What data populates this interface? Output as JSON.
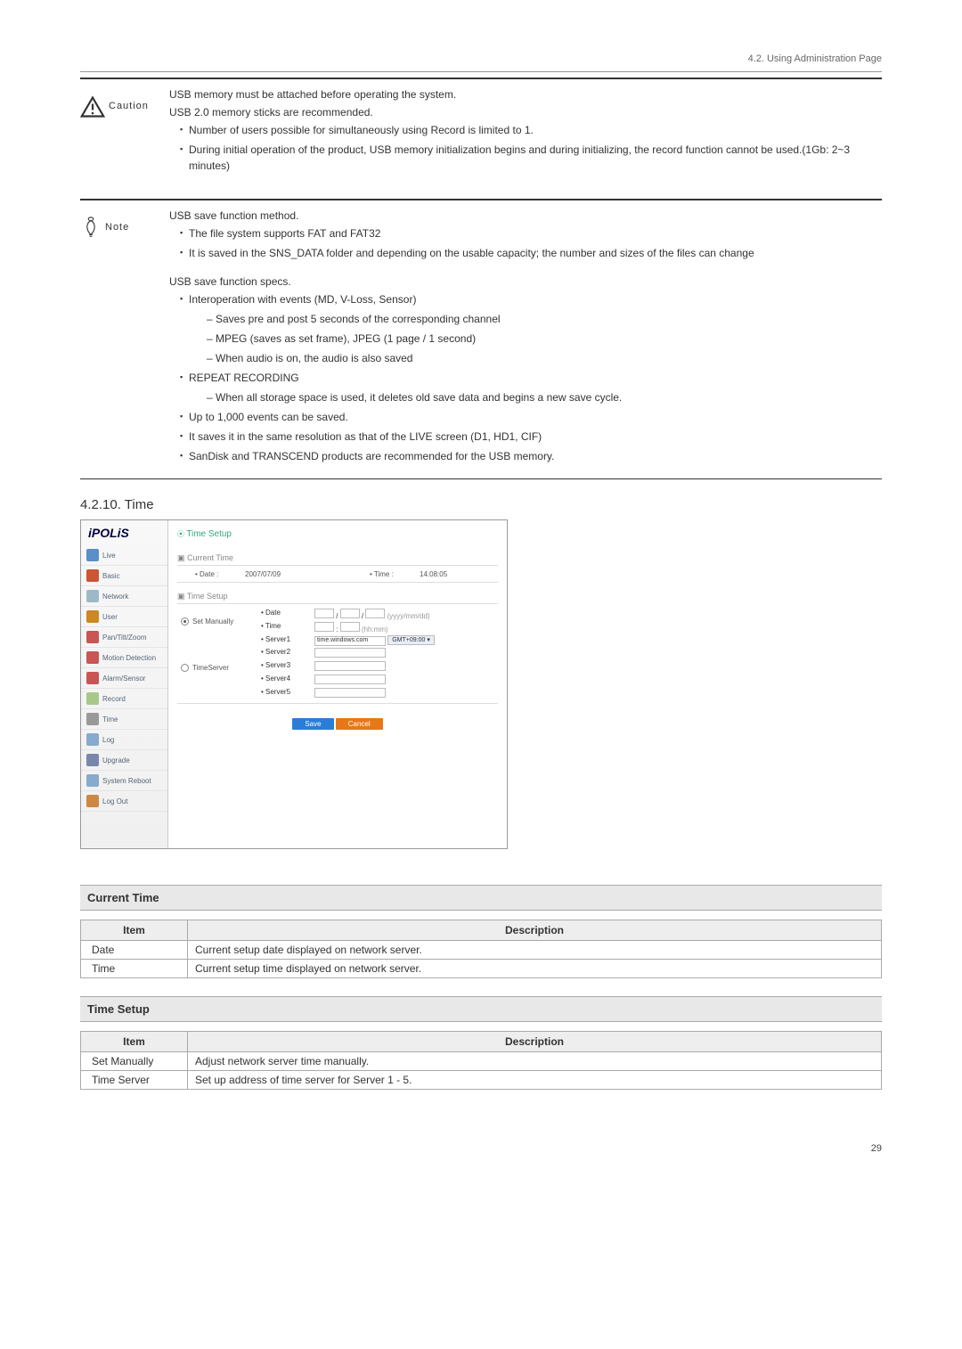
{
  "breadcrumb": "4.2. Using Administration Page",
  "caution": {
    "label": "Caution",
    "intro1": "USB memory must be attached before operating the system.",
    "intro2": "USB 2.0 memory sticks are recommended.",
    "items": [
      "Number of users possible for simultaneously using Record is limited to 1.",
      "During initial operation of the product, USB memory initialization begins and during initializing, the record function cannot be used.(1Gb: 2~3 minutes)"
    ]
  },
  "note": {
    "label": "Note",
    "block1_title": "USB save function method.",
    "block1_items": [
      "The file system supports FAT and FAT32",
      "It is saved in the SNS_DATA folder and depending on the usable capacity; the number and sizes of the files can change"
    ],
    "block2_title": "USB save function specs.",
    "b2_i1": "Interoperation with events (MD, V-Loss, Sensor)",
    "b2_i1_sub": [
      "Saves pre and post 5 seconds of the corresponding channel",
      "MPEG (saves as set frame), JPEG (1 page / 1 second)",
      "When audio is on, the audio is also saved"
    ],
    "b2_i2": "REPEAT RECORDING",
    "b2_i2_sub": [
      "When all storage space is used, it deletes old save data and begins a new save cycle."
    ],
    "b2_i3": "Up to 1,000 events can be saved.",
    "b2_i4": "It saves it in the same resolution as that of the LIVE screen (D1, HD1, CIF)",
    "b2_i5": "SanDisk and TRANSCEND products are recommended for the USB memory."
  },
  "section_title": "4.2.10. Time",
  "screenshot": {
    "logo": "iPOLiS",
    "sidebar_items": [
      {
        "label": "Live",
        "color": "#5a8fc9"
      },
      {
        "label": "Basic",
        "color": "#cc5533"
      },
      {
        "label": "Network",
        "color": "#9eb8c8"
      },
      {
        "label": "User",
        "color": "#cc8822"
      },
      {
        "label": "Pan/Tilt/Zoom",
        "color": "#c95555"
      },
      {
        "label": "Motion Detection",
        "color": "#c95555"
      },
      {
        "label": "Alarm/Sensor",
        "color": "#c95555"
      },
      {
        "label": "Record",
        "color": "#a8c888"
      },
      {
        "label": "Time",
        "color": "#999"
      },
      {
        "label": "Log",
        "color": "#88aacc"
      },
      {
        "label": "Upgrade",
        "color": "#7788aa"
      },
      {
        "label": "System Reboot",
        "color": "#88aacc"
      },
      {
        "label": "Log Out",
        "color": "#cc8844"
      }
    ],
    "page_heading": "Time Setup",
    "current_time_label": "Current Time",
    "date_label": "• Date :",
    "date_value": "2007/07/09",
    "time_label": "• Time :",
    "time_value": "14:08:05",
    "time_setup_label": "Time Setup",
    "set_manually": "Set Manually",
    "time_server": "TimeServer",
    "row_date": "• Date",
    "row_date_hint": "(yyyy/mm/dd)",
    "row_time": "• Time",
    "row_time_hint": "(hh:mm)",
    "server1": "• Server1",
    "server1_val": "time.windows.com",
    "server2": "• Server2",
    "server3": "• Server3",
    "server4": "• Server4",
    "server5": "• Server5",
    "gmt": "GMT+09:00 ▾",
    "save": "Save",
    "cancel": "Cancel"
  },
  "current_time_table": {
    "header": "Current Time",
    "col1": "Item",
    "col2": "Description",
    "rows": [
      {
        "item": "Date",
        "desc": "Current setup date displayed on network server."
      },
      {
        "item": "Time",
        "desc": "Current setup time displayed on network server."
      }
    ]
  },
  "time_setup_table": {
    "header": "Time Setup",
    "col1": "Item",
    "col2": "Description",
    "rows": [
      {
        "item": "Set Manually",
        "desc": "Adjust network server time manually."
      },
      {
        "item": "Time Server",
        "desc": "Set up address of time server for Server 1 - 5."
      }
    ]
  },
  "page_number": "29"
}
